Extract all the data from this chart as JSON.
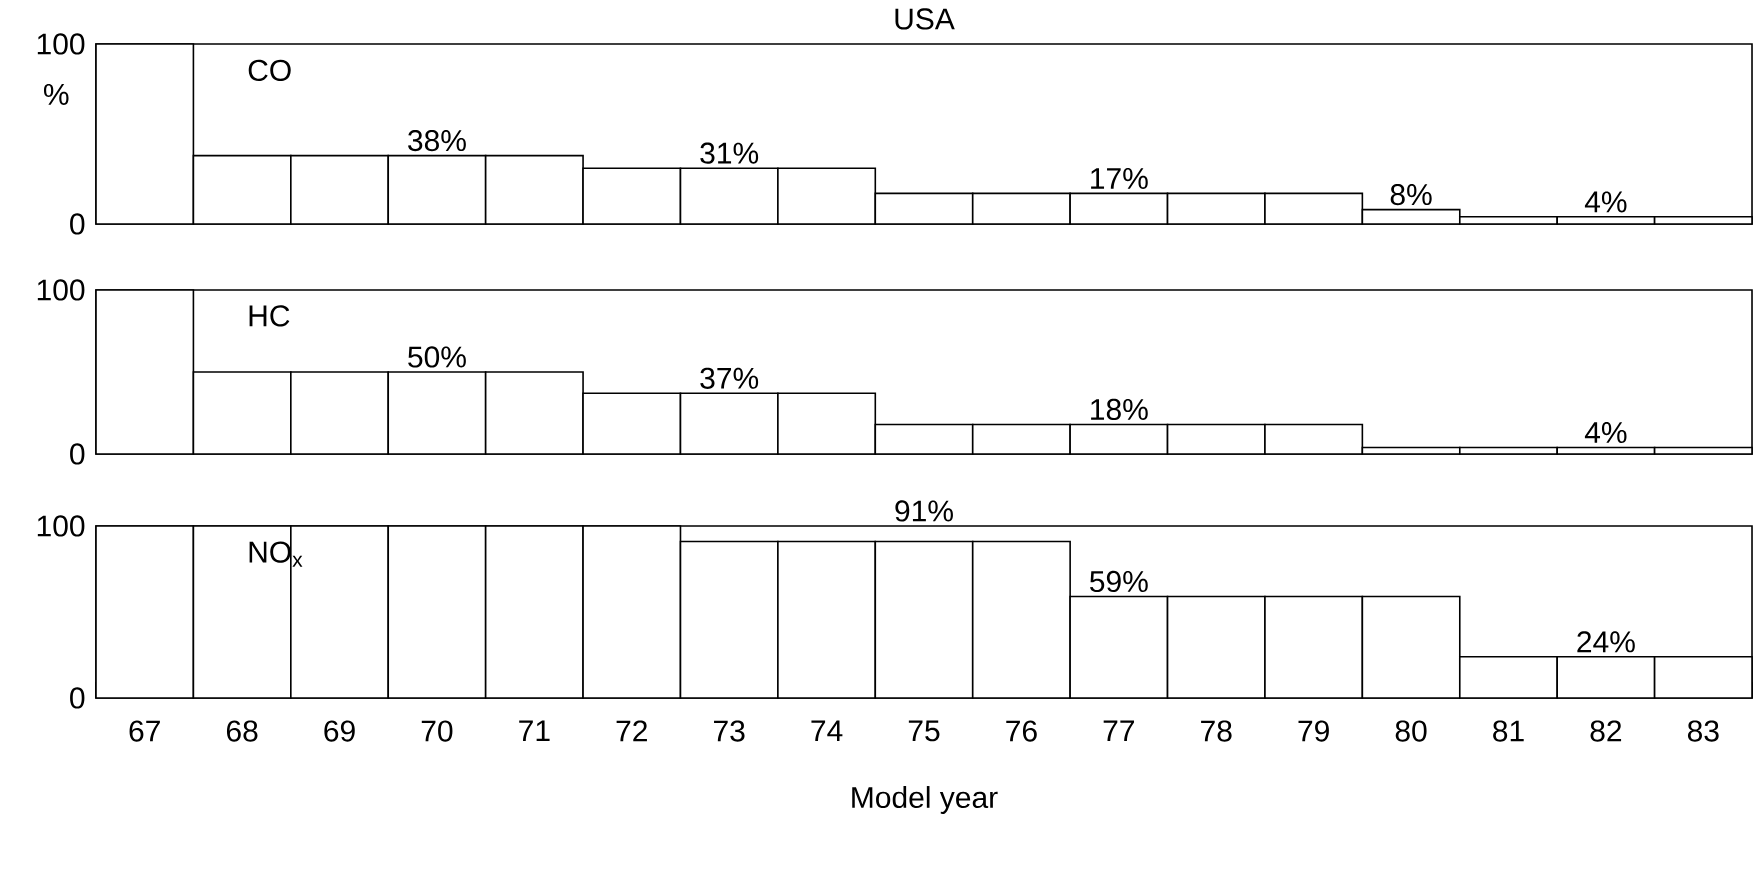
{
  "chart_data": [
    {
      "type": "bar",
      "title": "USA",
      "ylabel": "%",
      "annotations": [
        "CO"
      ],
      "categories": [
        "67",
        "68",
        "69",
        "70",
        "71",
        "72",
        "73",
        "74",
        "75",
        "76",
        "77",
        "78",
        "79",
        "80",
        "81",
        "82",
        "83"
      ],
      "color": "#ffffff",
      "values": [
        100,
        38,
        38,
        38,
        38,
        31,
        31,
        31,
        17,
        17,
        17,
        17,
        17,
        8,
        4,
        4,
        4
      ],
      "value_labels": [
        null,
        null,
        null,
        "38%",
        null,
        null,
        "31%",
        null,
        null,
        null,
        "17%",
        null,
        null,
        "8%",
        null,
        "4%",
        null
      ],
      "ylim": [
        0,
        100
      ],
      "yticks": [
        0,
        100
      ],
      "tick_labels": "y"
    },
    {
      "type": "bar",
      "annotations": [
        "HC"
      ],
      "categories": [
        "67",
        "68",
        "69",
        "70",
        "71",
        "72",
        "73",
        "74",
        "75",
        "76",
        "77",
        "78",
        "79",
        "80",
        "81",
        "82",
        "83"
      ],
      "color": "#ffffff",
      "values": [
        100,
        50,
        50,
        50,
        50,
        37,
        37,
        37,
        18,
        18,
        18,
        18,
        18,
        4,
        4,
        4,
        4
      ],
      "value_labels": [
        null,
        null,
        null,
        "50%",
        null,
        null,
        "37%",
        null,
        null,
        null,
        "18%",
        null,
        null,
        null,
        null,
        "4%",
        null
      ],
      "ylim": [
        0,
        100
      ],
      "yticks": [
        0,
        100
      ],
      "tick_labels": "y"
    },
    {
      "type": "bar",
      "xlabel": "Model year",
      "annotations": [
        "NO$_{x}$"
      ],
      "categories": [
        "67",
        "68",
        "69",
        "70",
        "71",
        "72",
        "73",
        "74",
        "75",
        "76",
        "77",
        "78",
        "79",
        "80",
        "81",
        "82",
        "83"
      ],
      "color": "#ffffff",
      "values": [
        100,
        100,
        100,
        100,
        100,
        100,
        91,
        91,
        91,
        91,
        59,
        59,
        59,
        59,
        24,
        24,
        24
      ],
      "value_labels": [
        null,
        null,
        null,
        null,
        null,
        null,
        null,
        null,
        "91%",
        null,
        "59%",
        null,
        null,
        null,
        null,
        "24%",
        null
      ],
      "ylim": [
        0,
        100
      ],
      "yticks": [
        0,
        100
      ]
    }
  ]
}
